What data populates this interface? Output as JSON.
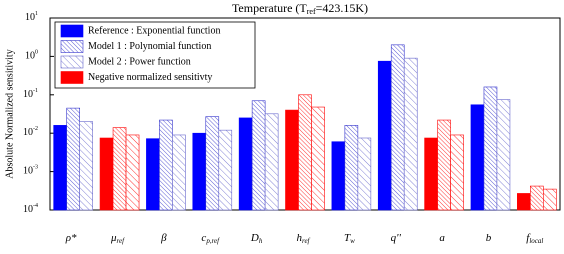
{
  "chart_data": {
    "type": "bar",
    "title": [
      "Temperature (T",
      "ref",
      "=423.15K)"
    ],
    "y_label": "Absolute Normalized sensitivity",
    "categories": [
      "ρ*",
      "μ",
      "β",
      "c",
      "D",
      "h",
      "T",
      "q''",
      "a",
      "b",
      "f"
    ],
    "category_subscripts": [
      null,
      "ref",
      null,
      "p,ref",
      "h",
      "ref",
      "w",
      null,
      null,
      null,
      "local"
    ],
    "negative": [
      false,
      true,
      false,
      false,
      false,
      true,
      false,
      false,
      true,
      false,
      true
    ],
    "negative_label": "Negative normalized sensitivty",
    "negative_color": "#ff0000",
    "series": [
      {
        "name": "Reference : Exponential function",
        "color": "#0000ff",
        "pattern": "solid",
        "values": [
          0.016,
          0.0075,
          0.0072,
          0.01,
          0.025,
          0.04,
          0.006,
          0.75,
          0.0075,
          0.055,
          0.00027
        ]
      },
      {
        "name": "Model 1 : Polynomial function",
        "color": "#3333cc",
        "pattern": "dense",
        "values": [
          0.045,
          0.014,
          0.022,
          0.027,
          0.07,
          0.1,
          0.016,
          2,
          0.022,
          0.16,
          0.00042
        ]
      },
      {
        "name": "Model 2 : Power function",
        "color": "#6666cc",
        "pattern": "sparse",
        "values": [
          0.02,
          0.009,
          0.009,
          0.012,
          0.032,
          0.048,
          0.0075,
          0.9,
          0.009,
          0.075,
          0.00035
        ]
      }
    ],
    "log_y": true,
    "ylim": [
      0.0001,
      10
    ],
    "yticks": [
      {
        "value": 0.0001,
        "label": "10",
        "exponent": "-4"
      },
      {
        "value": 0.001,
        "label": "10",
        "exponent": "-3"
      },
      {
        "value": 0.01,
        "label": "10",
        "exponent": "-2"
      },
      {
        "value": 0.1,
        "label": "10",
        "exponent": "-1"
      },
      {
        "value": 1,
        "label": "10",
        "exponent": "0"
      },
      {
        "value": 10,
        "label": "10",
        "exponent": "1"
      }
    ],
    "legend": "upper left"
  }
}
